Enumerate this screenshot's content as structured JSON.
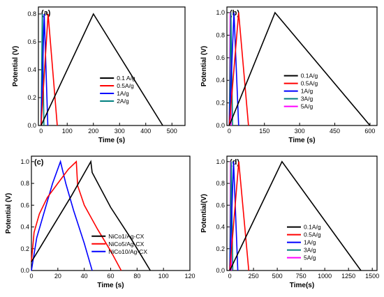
{
  "chart_data": [
    {
      "panel_label": "(a)",
      "type": "line",
      "xlabel": "Time (s)",
      "ylabel": "Potential (V)",
      "xlim": [
        -10,
        550
      ],
      "ylim": [
        0,
        0.85
      ],
      "xticks": [
        0,
        100,
        200,
        300,
        400,
        500
      ],
      "yticks": [
        0.0,
        0.2,
        0.4,
        0.6,
        0.8
      ],
      "yticklabels": [
        "0.0",
        "0.2",
        "0.4",
        "0.6",
        "0.8"
      ],
      "legend_position": "bottom-right",
      "series": [
        {
          "name": "0.1 A/g",
          "color": "#000000",
          "x": [
            0,
            200,
            465
          ],
          "y": [
            0,
            0.8,
            0
          ]
        },
        {
          "name": "0.5A/g",
          "color": "#ff0000",
          "x": [
            0,
            27,
            62
          ],
          "y": [
            0,
            0.8,
            0
          ]
        },
        {
          "name": "1A/g",
          "color": "#0000ff",
          "x": [
            0,
            12,
            26
          ],
          "y": [
            0,
            0.8,
            0
          ]
        },
        {
          "name": "2A/g",
          "color": "#008080",
          "x": [
            0,
            5,
            11
          ],
          "y": [
            0,
            0.8,
            0
          ]
        }
      ]
    },
    {
      "panel_label": "(b)",
      "type": "line",
      "xlabel": "Time (s)",
      "ylabel": "Potential (V)",
      "xlim": [
        -10,
        630
      ],
      "ylim": [
        0,
        1.05
      ],
      "xticks": [
        0,
        150,
        300,
        450,
        600
      ],
      "yticks": [
        0.0,
        0.2,
        0.4,
        0.6,
        0.8,
        1.0
      ],
      "yticklabels": [
        "0.0",
        "0.2",
        "0.4",
        "0.6",
        "0.8",
        "1.0"
      ],
      "legend_position": "bottom-right",
      "series": [
        {
          "name": "0.1A/g",
          "color": "#000000",
          "x": [
            0,
            195,
            600
          ],
          "y": [
            0,
            1.0,
            0
          ]
        },
        {
          "name": "0.5A/g",
          "color": "#ff0000",
          "x": [
            0,
            40,
            82
          ],
          "y": [
            0,
            1.0,
            0
          ]
        },
        {
          "name": "1A/g",
          "color": "#0000ff",
          "x": [
            0,
            20,
            40
          ],
          "y": [
            0,
            1.0,
            0
          ]
        },
        {
          "name": "3A/g",
          "color": "#008080",
          "x": [
            0,
            7,
            14
          ],
          "y": [
            0,
            1.0,
            0
          ]
        },
        {
          "name": "5A/g",
          "color": "#ff00ff",
          "x": [
            0,
            4,
            8
          ],
          "y": [
            0,
            1.0,
            0
          ]
        }
      ]
    },
    {
      "panel_label": "(c)",
      "type": "line",
      "xlabel": "Time (s)",
      "ylabel": "Potential (V)",
      "xlim": [
        0,
        120
      ],
      "ylim": [
        0,
        1.05
      ],
      "xticks": [
        0,
        20,
        40,
        60,
        80,
        100,
        120
      ],
      "yticks": [
        0.0,
        0.2,
        0.4,
        0.6,
        0.8,
        1.0
      ],
      "yticklabels": [
        "0.0",
        "0.2",
        "0.4",
        "0.6",
        "0.8",
        "1.0"
      ],
      "legend_position": "bottom-right",
      "series": [
        {
          "name": "NiCo1/Ag-CX",
          "color": "#000000",
          "x": [
            0,
            5,
            15,
            30,
            45,
            46,
            60,
            75,
            90
          ],
          "y": [
            0.08,
            0.18,
            0.38,
            0.68,
            1.0,
            0.9,
            0.58,
            0.3,
            0.0
          ]
        },
        {
          "name": "NiCo5/Ag-CX",
          "color": "#ff0000",
          "x": [
            0,
            2,
            6,
            12,
            20,
            28,
            34,
            35,
            40,
            50,
            60,
            68
          ],
          "y": [
            0.08,
            0.35,
            0.52,
            0.67,
            0.8,
            0.93,
            1.0,
            0.78,
            0.6,
            0.38,
            0.18,
            0.0
          ]
        },
        {
          "name": "NiCo10/Ag-CX",
          "color": "#0000ff",
          "x": [
            0,
            4,
            10,
            16,
            22,
            26,
            32,
            40,
            46
          ],
          "y": [
            0.0,
            0.3,
            0.55,
            0.8,
            1.0,
            0.8,
            0.55,
            0.25,
            0.0
          ]
        }
      ]
    },
    {
      "panel_label": "(d)",
      "type": "line",
      "xlabel": "Time(s)",
      "ylabel": "Potential(V)",
      "xlim": [
        -30,
        1550
      ],
      "ylim": [
        0,
        1.05
      ],
      "xticks": [
        0,
        250,
        500,
        750,
        1000,
        1250,
        1500
      ],
      "yticks": [
        0.0,
        0.2,
        0.4,
        0.6,
        0.8,
        1.0
      ],
      "yticklabels": [
        "0.0",
        "0.2",
        "0.4",
        "0.6",
        "0.8",
        "1.0"
      ],
      "legend_position": "bottom-right",
      "series": [
        {
          "name": "0.1A/g",
          "color": "#000000",
          "x": [
            0,
            550,
            1380
          ],
          "y": [
            0,
            1.0,
            0
          ]
        },
        {
          "name": "0.5A/g",
          "color": "#ff0000",
          "x": [
            0,
            95,
            200
          ],
          "y": [
            0,
            1.0,
            0
          ]
        },
        {
          "name": "1A/g",
          "color": "#0000ff",
          "x": [
            0,
            40,
            85
          ],
          "y": [
            0,
            1.0,
            0
          ]
        },
        {
          "name": "3A/g",
          "color": "#008080",
          "x": [
            0,
            15,
            32
          ],
          "y": [
            0,
            1.0,
            0
          ]
        },
        {
          "name": "5A/g",
          "color": "#ff00ff",
          "x": [
            0,
            8,
            17
          ],
          "y": [
            0,
            1.0,
            0
          ]
        }
      ]
    }
  ]
}
